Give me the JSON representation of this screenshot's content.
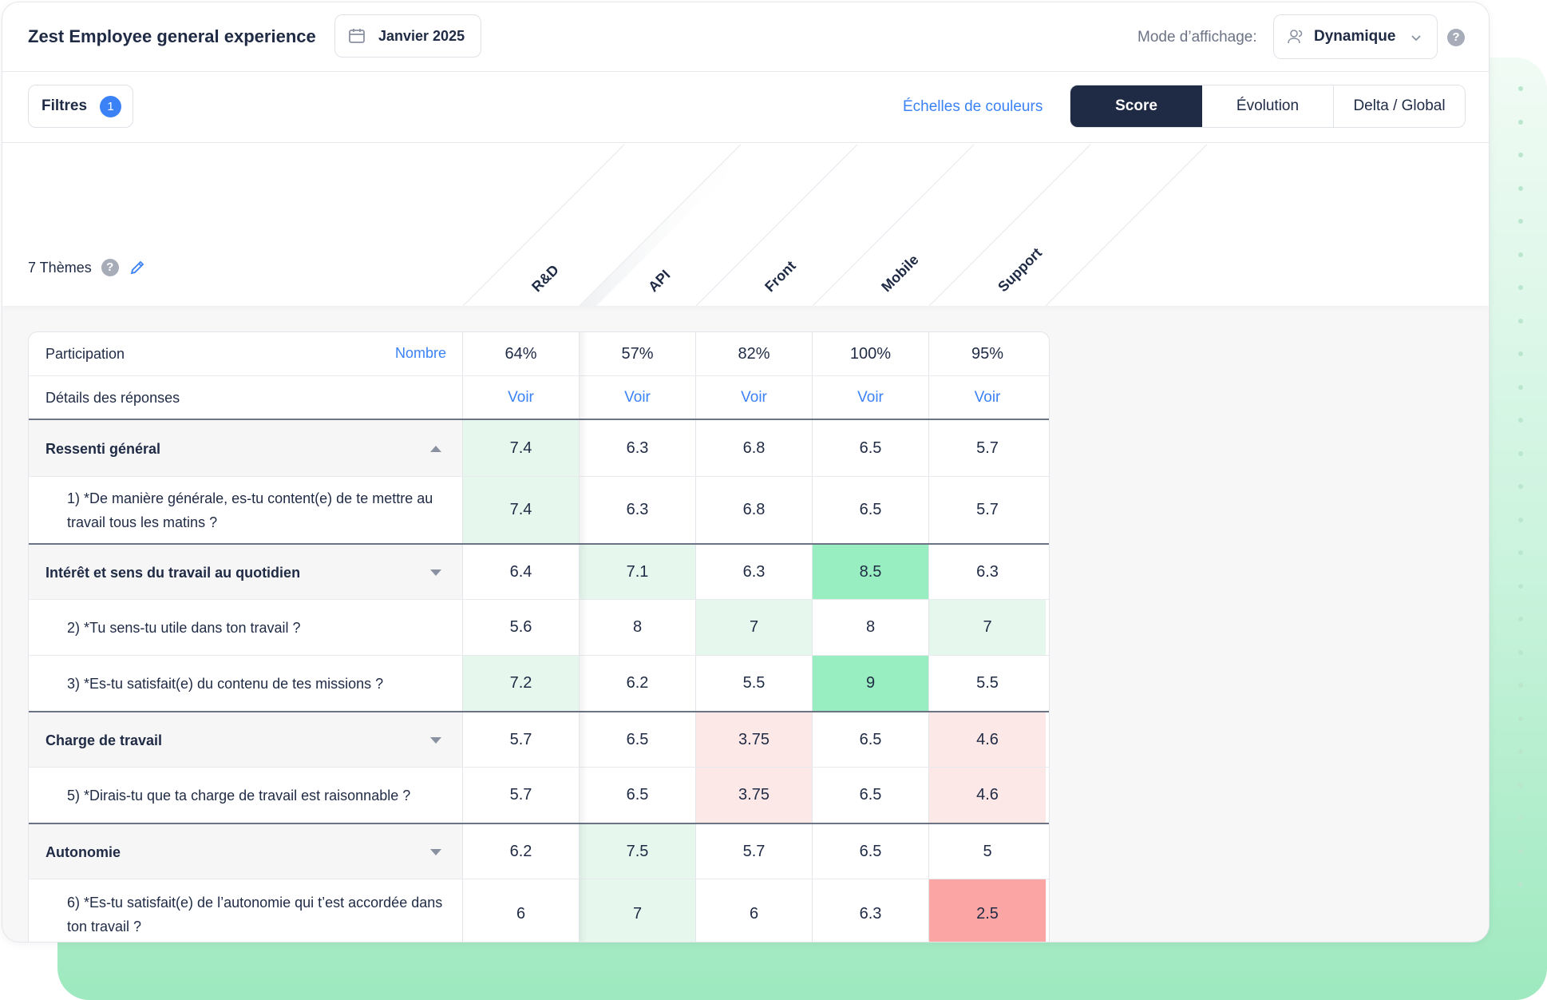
{
  "app": {
    "title": "Zest Employee general experience"
  },
  "period": {
    "label": "Janvier 2025"
  },
  "display_mode": {
    "label": "Mode d’affichage:",
    "value": "Dynamique"
  },
  "help_label": "?",
  "filters": {
    "label": "Filtres",
    "count": "1"
  },
  "color_scales": {
    "label": "Échelles de couleurs"
  },
  "view_tabs": [
    {
      "label": "Score",
      "selected": true
    },
    {
      "label": "Évolution",
      "selected": false
    },
    {
      "label": "Delta / Global",
      "selected": false
    }
  ],
  "themes_label": "7 Thèmes",
  "colors": {
    "accent": "#3b82f6",
    "dark": "#1f2a44",
    "green_light": "#e6f8ee",
    "green_medium": "#98eec0",
    "red_light": "#fde8e8",
    "red_strong": "#fca5a5"
  },
  "columns": [
    "R&D",
    "API",
    "Front",
    "Mobile",
    "Support"
  ],
  "rows": [
    {
      "type": "meta",
      "label": "Participation",
      "extra": "Nombre",
      "values": [
        "64%",
        "57%",
        "82%",
        "100%",
        "95%"
      ],
      "tones": [
        "",
        "",
        "",
        "",
        ""
      ]
    },
    {
      "type": "meta",
      "label": "Détails des réponses",
      "values": [
        "Voir",
        "Voir",
        "Voir",
        "Voir",
        "Voir"
      ],
      "tones": [
        "",
        "",
        "",
        "",
        ""
      ],
      "link": true
    },
    {
      "type": "theme",
      "label": "Ressenti général",
      "expanded": true,
      "values": [
        "7.4",
        "6.3",
        "6.8",
        "6.5",
        "5.7"
      ],
      "tones": [
        "g1",
        "",
        "",
        "",
        ""
      ]
    },
    {
      "type": "question",
      "label": "1) *De manière générale, es-tu content(e) de te mettre au travail tous les matins ?",
      "values": [
        "7.4",
        "6.3",
        "6.8",
        "6.5",
        "5.7"
      ],
      "tones": [
        "g1",
        "",
        "",
        "",
        ""
      ]
    },
    {
      "type": "theme",
      "label": "Intérêt et sens du travail au quotidien",
      "expanded": false,
      "values": [
        "6.4",
        "7.1",
        "6.3",
        "8.5",
        "6.3"
      ],
      "tones": [
        "",
        "g1",
        "",
        "g2",
        ""
      ]
    },
    {
      "type": "question",
      "label": "2) *Tu sens-tu utile dans ton travail ?",
      "values": [
        "5.6",
        "8",
        "7",
        "8",
        "7"
      ],
      "tones": [
        "",
        "",
        "g1",
        "",
        "g1"
      ]
    },
    {
      "type": "question",
      "label": "3) *Es-tu satisfait(e) du contenu de tes missions ?",
      "values": [
        "7.2",
        "6.2",
        "5.5",
        "9",
        "5.5"
      ],
      "tones": [
        "g1",
        "",
        "",
        "g2",
        ""
      ]
    },
    {
      "type": "theme",
      "label": "Charge de travail",
      "expanded": false,
      "values": [
        "5.7",
        "6.5",
        "3.75",
        "6.5",
        "4.6"
      ],
      "tones": [
        "",
        "",
        "r1",
        "",
        "r1"
      ]
    },
    {
      "type": "question",
      "label": "5) *Dirais-tu que ta charge de travail est raisonnable ?",
      "values": [
        "5.7",
        "6.5",
        "3.75",
        "6.5",
        "4.6"
      ],
      "tones": [
        "",
        "",
        "r1",
        "",
        "r1"
      ]
    },
    {
      "type": "theme",
      "label": "Autonomie",
      "expanded": false,
      "values": [
        "6.2",
        "7.5",
        "5.7",
        "6.5",
        "5"
      ],
      "tones": [
        "",
        "g1",
        "",
        "",
        ""
      ]
    },
    {
      "type": "question",
      "label": "6) *Es-tu satisfait(e) de l’autonomie qui t’est accordée dans ton travail ?",
      "values": [
        "6",
        "7",
        "6",
        "6.3",
        "2.5"
      ],
      "tones": [
        "",
        "g1",
        "",
        "",
        "r2"
      ]
    }
  ]
}
